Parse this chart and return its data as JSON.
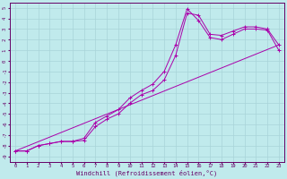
{
  "xlabel": "Windchill (Refroidissement éolien,°C)",
  "xlim": [
    -0.5,
    23.5
  ],
  "ylim": [
    -9.5,
    5.5
  ],
  "xticks": [
    0,
    1,
    2,
    3,
    4,
    5,
    6,
    7,
    8,
    9,
    10,
    11,
    12,
    13,
    14,
    15,
    16,
    17,
    18,
    19,
    20,
    21,
    22,
    23
  ],
  "yticks": [
    5,
    4,
    3,
    2,
    1,
    0,
    -1,
    -2,
    -3,
    -4,
    -5,
    -6,
    -7,
    -8,
    -9
  ],
  "bg_color": "#c0eaec",
  "grid_color": "#a8d4d8",
  "line_color": "#aa00aa",
  "curve1_x": [
    0,
    1,
    2,
    3,
    4,
    5,
    6,
    7,
    8,
    9,
    10,
    11,
    12,
    13,
    14,
    15,
    16,
    17,
    18,
    19,
    20,
    21,
    22,
    23
  ],
  "curve1_y": [
    -8.5,
    -8.5,
    -8.0,
    -7.8,
    -7.6,
    -7.6,
    -7.3,
    -5.8,
    -5.2,
    -4.6,
    -3.5,
    -2.8,
    -2.2,
    -1.0,
    1.5,
    4.9,
    3.8,
    2.2,
    2.0,
    2.5,
    3.0,
    3.0,
    2.9,
    1.0
  ],
  "curve2_x": [
    0,
    1,
    2,
    3,
    4,
    5,
    6,
    7,
    8,
    9,
    10,
    11,
    12,
    13,
    14,
    15,
    16,
    17,
    18,
    19,
    20,
    21,
    22,
    23
  ],
  "curve2_y": [
    -8.5,
    -8.5,
    -8.0,
    -7.8,
    -7.6,
    -7.6,
    -7.5,
    -6.2,
    -5.5,
    -5.0,
    -4.0,
    -3.2,
    -2.8,
    -1.8,
    0.5,
    4.5,
    4.3,
    2.5,
    2.4,
    2.8,
    3.2,
    3.2,
    3.0,
    1.5
  ],
  "curve3_x": [
    0,
    23
  ],
  "curve3_y": [
    -8.5,
    1.5
  ],
  "marker": "+"
}
